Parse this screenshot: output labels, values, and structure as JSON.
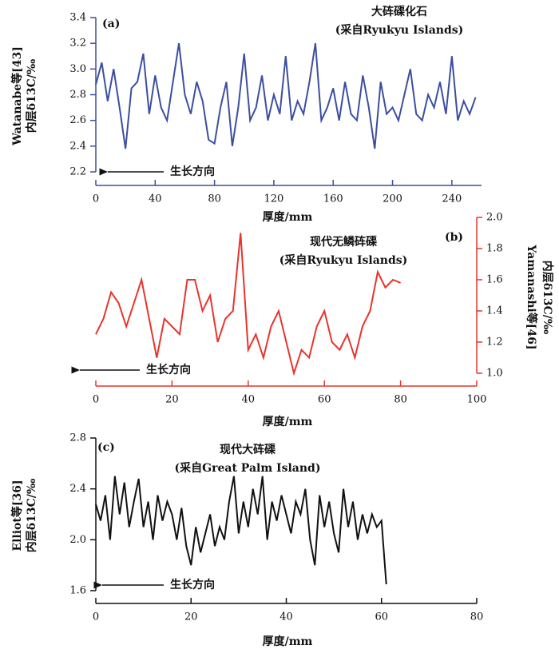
{
  "chart_data": [
    {
      "type": "line",
      "label": "(a)",
      "title": "大砗磲化石",
      "subtitle": "(采自Ryukyu Islands)",
      "annotation": "生长方向",
      "xlabel": "厚度/mm",
      "ylabel": [
        "Watanabe等[43]",
        "内层δ13C/‰"
      ],
      "yaxis": "left",
      "x": [
        0,
        4,
        8,
        12,
        16,
        20,
        24,
        28,
        32,
        36,
        40,
        44,
        48,
        52,
        56,
        60,
        64,
        68,
        72,
        76,
        80,
        84,
        88,
        92,
        96,
        100,
        104,
        108,
        112,
        116,
        120,
        124,
        128,
        132,
        136,
        140,
        144,
        148,
        152,
        156,
        160,
        164,
        168,
        172,
        176,
        180,
        184,
        188,
        192,
        196,
        200,
        204,
        208,
        212,
        216,
        220,
        224,
        228,
        232,
        236,
        240,
        244,
        248,
        252,
        256
      ],
      "values": [
        2.88,
        3.05,
        2.75,
        3.0,
        2.7,
        2.38,
        2.85,
        2.9,
        3.12,
        2.65,
        2.95,
        2.7,
        2.6,
        2.9,
        3.2,
        2.8,
        2.65,
        2.9,
        2.75,
        2.45,
        2.42,
        2.7,
        2.9,
        2.4,
        2.7,
        3.12,
        2.6,
        2.7,
        2.95,
        2.6,
        2.8,
        2.65,
        3.1,
        2.6,
        2.75,
        2.65,
        2.9,
        3.2,
        2.6,
        2.7,
        2.85,
        2.6,
        2.9,
        2.65,
        2.6,
        2.95,
        2.7,
        2.38,
        2.9,
        2.65,
        2.7,
        2.6,
        2.8,
        3.0,
        2.65,
        2.6,
        2.8,
        2.7,
        2.9,
        2.65,
        3.1,
        2.6,
        2.75,
        2.65,
        2.78
      ],
      "color": "#3b4ea0",
      "xlim": [
        0,
        260
      ],
      "xticks": [
        0,
        40,
        80,
        120,
        160,
        200,
        240
      ],
      "ylim": [
        2.2,
        3.4
      ],
      "yticks": [
        2.2,
        2.4,
        2.6,
        2.8,
        {
          "value": 3,
          "label": "3.0"
        },
        3.2,
        3.4
      ]
    },
    {
      "type": "line",
      "label": "(b)",
      "title": "现代无鳞砗磲",
      "subtitle": "(采自Ryukyu Islands)",
      "annotation": "生长方向",
      "xlabel": "厚度/mm",
      "ylabel": [
        "Yamanashi等[46]",
        "内层δ13C/‰"
      ],
      "yaxis": "right",
      "x": [
        0,
        2,
        4,
        6,
        8,
        10,
        12,
        14,
        16,
        18,
        20,
        22,
        24,
        26,
        28,
        30,
        32,
        34,
        36,
        38,
        40,
        42,
        44,
        46,
        48,
        50,
        52,
        54,
        56,
        58,
        60,
        62,
        64,
        66,
        68,
        70,
        72,
        74,
        76,
        78,
        80
      ],
      "values": [
        1.25,
        1.35,
        1.52,
        1.45,
        1.3,
        1.45,
        1.6,
        1.35,
        1.1,
        1.35,
        1.3,
        1.25,
        1.6,
        1.6,
        1.4,
        1.5,
        1.2,
        1.35,
        1.4,
        1.9,
        1.15,
        1.25,
        1.1,
        1.3,
        1.4,
        1.2,
        1.0,
        1.15,
        1.1,
        1.3,
        1.4,
        1.2,
        1.15,
        1.25,
        1.1,
        1.3,
        1.4,
        1.65,
        1.55,
        1.6,
        1.58
      ],
      "color": "#e8342c",
      "xlim": [
        0,
        100
      ],
      "xticks": [
        0,
        20,
        40,
        60,
        80,
        100
      ],
      "ylim": [
        1,
        2
      ],
      "yticks": [
        {
          "value": 1,
          "label": "1.0"
        },
        1.2,
        1.4,
        1.6,
        1.8,
        {
          "value": 2,
          "label": "2.0"
        }
      ]
    },
    {
      "type": "line",
      "label": "(c)",
      "title": "现代大砗磲",
      "subtitle": "(采自Great Palm Island)",
      "annotation": "生长方向",
      "xlabel": "厚度/mm",
      "ylabel": [
        "Elliot等[36]",
        "内层δ13C/‰"
      ],
      "yaxis": "left",
      "x": [
        0,
        1,
        2,
        3,
        4,
        5,
        6,
        7,
        8,
        9,
        10,
        11,
        12,
        13,
        14,
        15,
        16,
        17,
        18,
        19,
        20,
        21,
        22,
        23,
        24,
        25,
        26,
        27,
        28,
        29,
        30,
        31,
        32,
        33,
        34,
        35,
        36,
        37,
        38,
        39,
        40,
        41,
        42,
        43,
        44,
        45,
        46,
        47,
        48,
        49,
        50,
        51,
        52,
        53,
        54,
        55,
        56,
        57,
        58,
        59,
        60,
        61
      ],
      "values": [
        2.28,
        2.15,
        2.35,
        2.0,
        2.5,
        2.2,
        2.45,
        2.1,
        2.3,
        2.48,
        2.1,
        2.3,
        2.0,
        2.35,
        2.15,
        2.3,
        2.2,
        2.0,
        2.25,
        1.95,
        1.8,
        2.1,
        1.9,
        2.05,
        2.2,
        1.95,
        2.1,
        2.0,
        2.3,
        2.5,
        2.05,
        2.3,
        2.1,
        2.4,
        2.2,
        2.5,
        2.0,
        2.3,
        2.15,
        2.35,
        2.2,
        2.05,
        2.3,
        2.2,
        2.4,
        2.0,
        1.8,
        2.35,
        2.1,
        2.3,
        2.05,
        1.9,
        2.4,
        2.1,
        2.3,
        2.0,
        2.2,
        2.05,
        2.2,
        2.1,
        2.15,
        1.65
      ],
      "color": "#111111",
      "xlim": [
        0,
        80
      ],
      "xticks": [
        0,
        20,
        40,
        60,
        80
      ],
      "ylim": [
        1.6,
        2.8
      ],
      "yticks": [
        1.6,
        {
          "value": 2,
          "label": "2.0"
        },
        2.4,
        2.8
      ]
    }
  ]
}
